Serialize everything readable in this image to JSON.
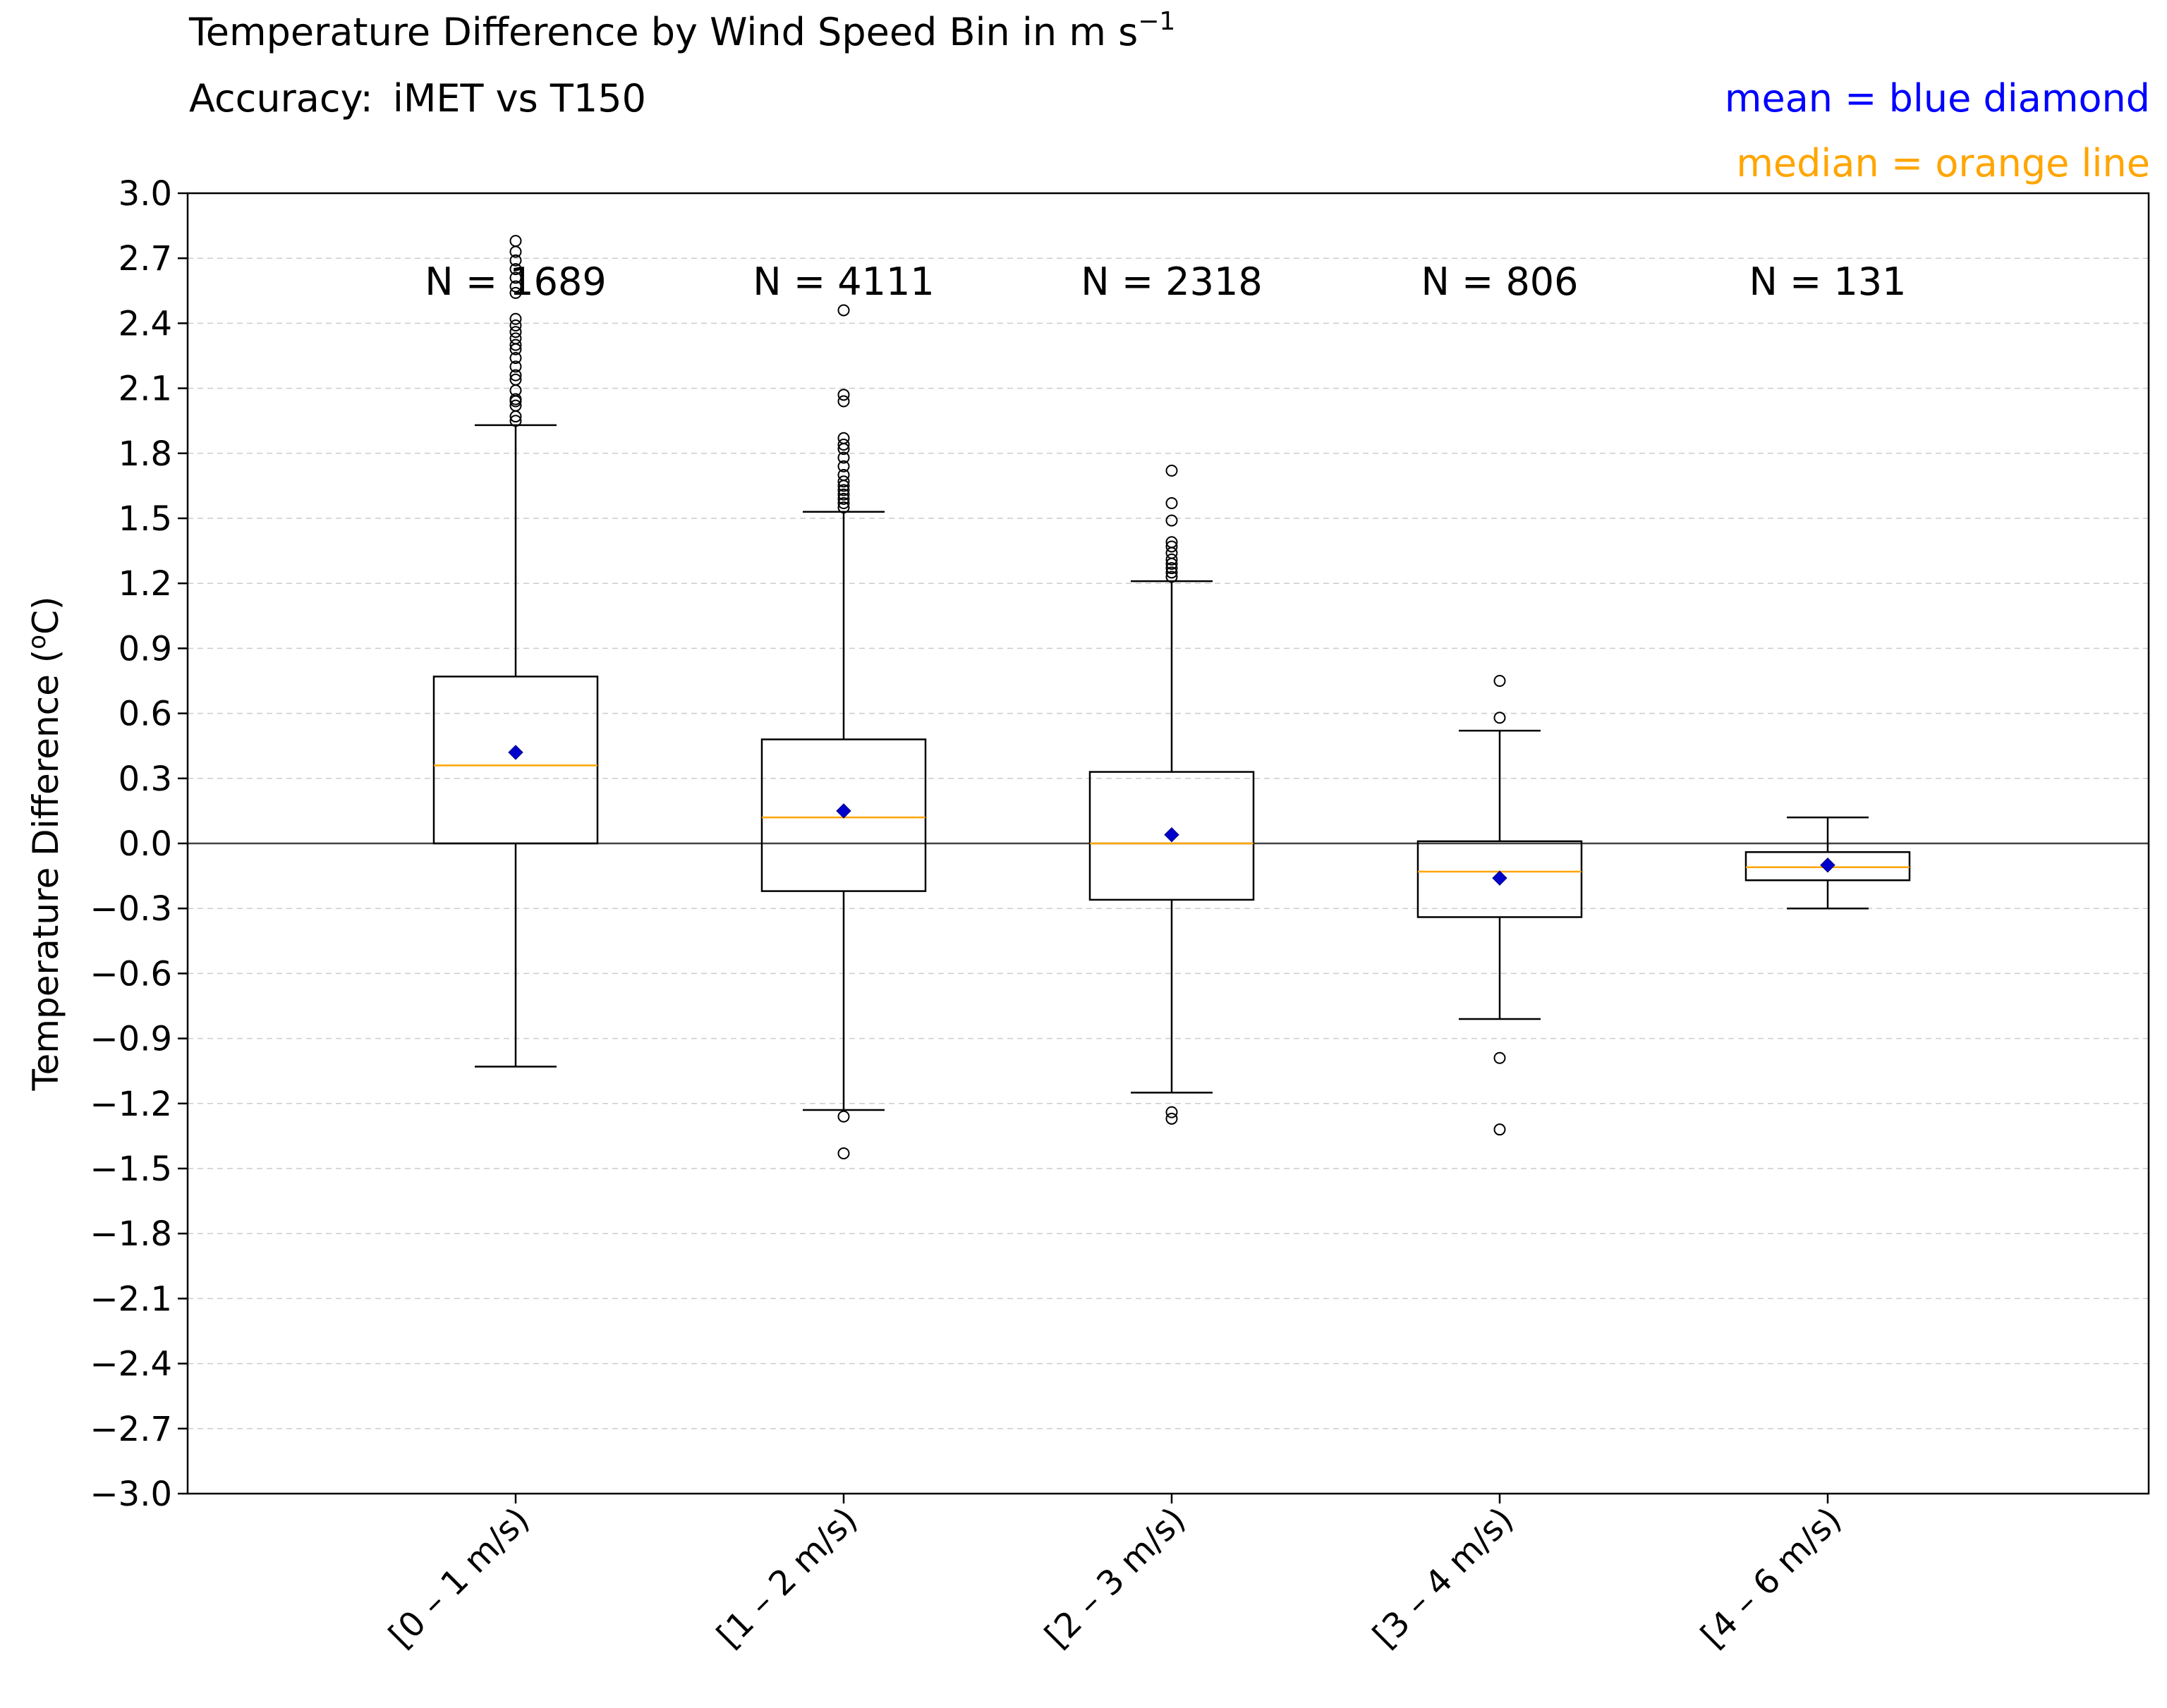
{
  "chart_data": {
    "type": "box",
    "title": "Temperature Difference by Wind Speed Bin in m s",
    "title_superscript": "−1",
    "subtitle_prefix": "Accuracy:",
    "subtitle_value": "iMET vs T150",
    "legend": [
      {
        "text": "mean = blue diamond",
        "color": "#0000ff"
      },
      {
        "text": "median = orange line",
        "color": "#ffa500"
      }
    ],
    "ylabel": "Temperature Difference (",
    "ylabel_superscript": "o",
    "ylabel_suffix": "C)",
    "ylim": [
      -3.0,
      3.0
    ],
    "yticks": [
      "−3.0",
      "−2.7",
      "−2.4",
      "−2.1",
      "−1.8",
      "−1.5",
      "−1.2",
      "−0.9",
      "−0.6",
      "−0.3",
      "0.0",
      "0.3",
      "0.6",
      "0.9",
      "1.2",
      "1.5",
      "1.8",
      "2.1",
      "2.4",
      "2.7",
      "3.0"
    ],
    "grid": "horizontal dashed",
    "zero_line": 0.0,
    "categories": [
      "[0 – 1 m/s)",
      "[1 – 2 m/s)",
      "[2 – 3 m/s)",
      "[3 – 4 m/s)",
      "[4 – 6 m/s)"
    ],
    "boxes": [
      {
        "n_label": "N = 1689",
        "whisker_low": -1.03,
        "q1": 0.0,
        "median": 0.36,
        "q3": 0.77,
        "whisker_high": 1.93,
        "mean": 0.42,
        "outliers": [
          1.95,
          1.97,
          2.02,
          2.04,
          2.05,
          2.09,
          2.14,
          2.16,
          2.2,
          2.24,
          2.28,
          2.3,
          2.33,
          2.36,
          2.39,
          2.42,
          2.54,
          2.57,
          2.61,
          2.65,
          2.69,
          2.73,
          2.78
        ]
      },
      {
        "n_label": "N = 4111",
        "whisker_low": -1.23,
        "q1": -0.22,
        "median": 0.12,
        "q3": 0.48,
        "whisker_high": 1.53,
        "mean": 0.15,
        "outliers": [
          -1.26,
          -1.43,
          1.55,
          1.57,
          1.59,
          1.61,
          1.63,
          1.65,
          1.67,
          1.7,
          1.74,
          1.78,
          1.82,
          1.84,
          1.87,
          2.04,
          2.07,
          2.46
        ]
      },
      {
        "n_label": "N = 2318",
        "whisker_low": -1.15,
        "q1": -0.26,
        "median": 0.0,
        "q3": 0.33,
        "whisker_high": 1.21,
        "mean": 0.04,
        "outliers": [
          -1.24,
          -1.27,
          1.23,
          1.25,
          1.27,
          1.29,
          1.31,
          1.34,
          1.37,
          1.39,
          1.49,
          1.57,
          1.72
        ]
      },
      {
        "n_label": "N = 806",
        "whisker_low": -0.81,
        "q1": -0.34,
        "median": -0.13,
        "q3": 0.01,
        "whisker_high": 0.52,
        "mean": -0.16,
        "outliers": [
          -0.99,
          -1.32,
          0.58,
          0.75
        ]
      },
      {
        "n_label": "N = 131",
        "whisker_low": -0.3,
        "q1": -0.17,
        "median": -0.11,
        "q3": -0.04,
        "whisker_high": 0.12,
        "mean": -0.1,
        "outliers": []
      }
    ]
  }
}
